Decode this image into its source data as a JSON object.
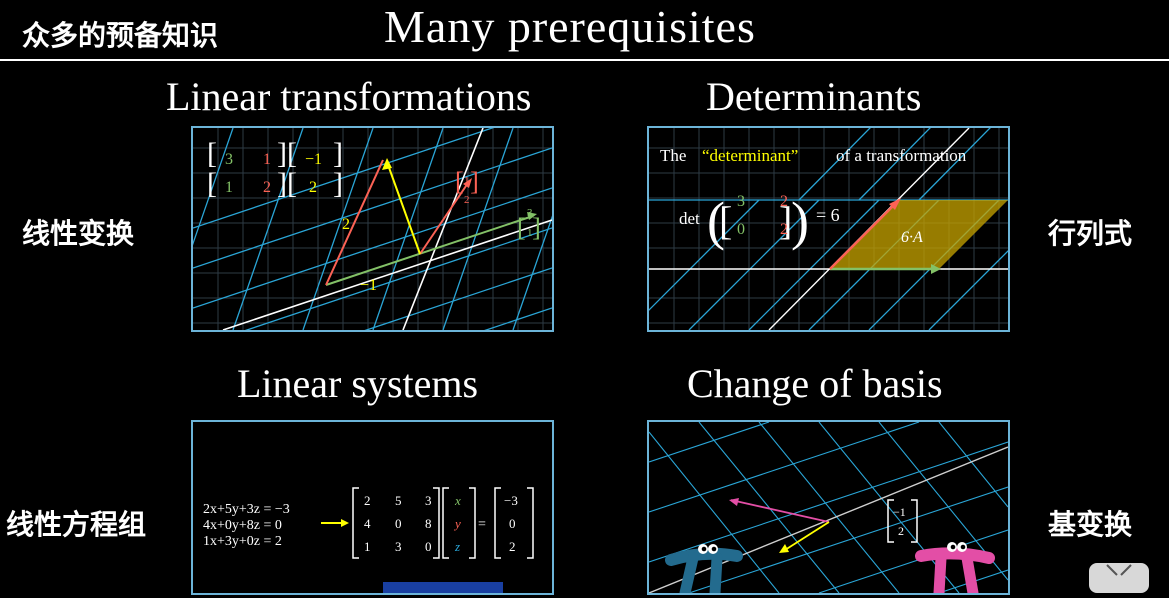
{
  "header": {
    "title_zh": "众多的预备知识",
    "title_en": "Many prerequisites"
  },
  "colors": {
    "panel_border": "#6cb4d8",
    "grid_blue": "#2aa5d6",
    "green": "#83c167",
    "red": "#fc6255",
    "yellow": "#ffff00",
    "pink": "#e34ea6",
    "teal": "#236b8e"
  },
  "panels": {
    "linear_transformations": {
      "title": "Linear transformations",
      "label_zh": "线性变换",
      "matrix": [
        "3",
        "1",
        "1",
        "2"
      ],
      "vector": [
        "−1",
        "2"
      ],
      "result_vec": [
        "1",
        "2"
      ],
      "basis_vec": [
        "3",
        "1"
      ],
      "scalar_a": "2",
      "scalar_b": "−1"
    },
    "determinants": {
      "title": "Determinants",
      "label_zh": "行列式",
      "caption_before": "The",
      "caption_highlight": "“determinant”",
      "caption_after": "of a transformation",
      "det_label": "det",
      "matrix": [
        "3",
        "2",
        "0",
        "2"
      ],
      "result": "= 6",
      "area_label": "6·A"
    },
    "linear_systems": {
      "title": "Linear systems",
      "label_zh": "线性方程组",
      "eq1": "2x+5y+3z = −3",
      "eq2": "4x+0y+8z = 0",
      "eq3": "1x+3y+0z = 2",
      "matrix": [
        "2",
        "5",
        "3",
        "4",
        "0",
        "8",
        "1",
        "3",
        "0"
      ],
      "vars": [
        "x",
        "y",
        "z"
      ],
      "rhs": [
        "−3",
        "0",
        "2"
      ],
      "equals": "="
    },
    "change_of_basis": {
      "title": "Change of basis",
      "label_zh": "基变换",
      "vector": [
        "−1",
        "2"
      ]
    }
  }
}
